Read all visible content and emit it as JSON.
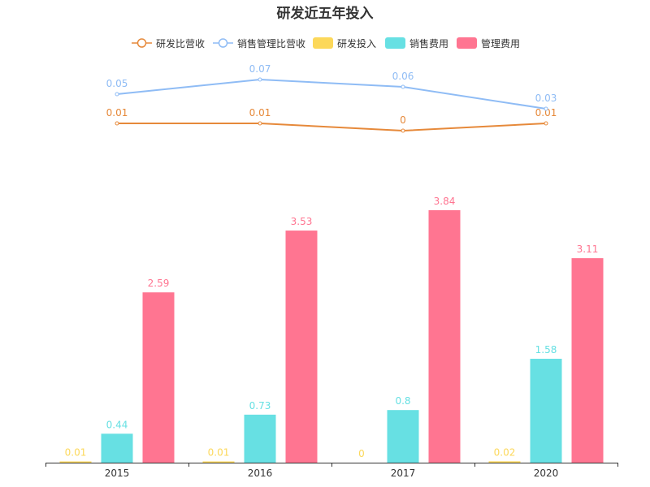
{
  "chart_data": {
    "type": "bar",
    "title": "研发近五年投入",
    "categories": [
      "2015",
      "2016",
      "2017",
      "2020"
    ],
    "series": [
      {
        "name": "研发比营收",
        "type": "line",
        "color": "#e6893a",
        "values": [
          0.01,
          0.01,
          0,
          0.01
        ]
      },
      {
        "name": "销售管理比营收",
        "type": "line",
        "color": "#8fbcf5",
        "values": [
          0.05,
          0.07,
          0.06,
          0.03
        ]
      },
      {
        "name": "研发投入",
        "type": "bar",
        "color": "#fcd85a",
        "values": [
          0.01,
          0.01,
          0,
          0.02
        ]
      },
      {
        "name": "销售费用",
        "type": "bar",
        "color": "#67e0e3",
        "values": [
          0.44,
          0.73,
          0.8,
          1.58
        ]
      },
      {
        "name": "管理费用",
        "type": "bar",
        "color": "#ff7591",
        "values": [
          2.59,
          3.53,
          3.84,
          3.11
        ]
      }
    ],
    "xlabel": "",
    "ylabel": "",
    "grid": false,
    "legend_position": "top-center"
  }
}
